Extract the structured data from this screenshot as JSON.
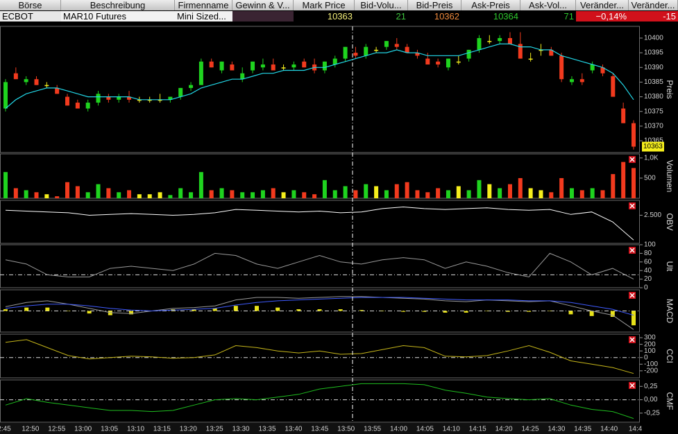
{
  "table": {
    "columns": [
      "Börse",
      "Beschreibung",
      "Firmenname",
      "Gewinn & V...",
      "Mark Price",
      "Bid-Volu...",
      "Bid-Preis",
      "Ask-Preis",
      "Ask-Vol...",
      "Veränder...",
      "Veränder..."
    ],
    "rows": [
      [
        "ECBOT",
        "MAR10 Futures",
        "Mini Sized...",
        "",
        "10363",
        "21",
        "10362",
        "10364",
        "71",
        "−0,14%",
        "-15"
      ]
    ]
  },
  "x_axis": {
    "labels": [
      "2:45",
      "12:50",
      "12:55",
      "13:00",
      "13:05",
      "13:10",
      "13:15",
      "13:20",
      "13:25",
      "13:30",
      "13:35",
      "13:40",
      "13:45",
      "13:50",
      "13:55",
      "14:00",
      "14:05",
      "14:10",
      "14:15",
      "14:20",
      "14:25",
      "14:30",
      "14:35",
      "14:40",
      "14:4"
    ]
  },
  "chart_data": [
    {
      "type": "candlestick",
      "label": "Preis",
      "ylim": [
        10361,
        10404
      ],
      "yticks": [
        10365,
        10370,
        10375,
        10380,
        10385,
        10390,
        10395,
        10400
      ],
      "colors": {
        "up": "#1fd31f",
        "down": "#f23a1e",
        "flat": "#f5ee1c"
      },
      "open": [
        10376,
        10388,
        10385,
        10386,
        10384,
        10383,
        10380,
        10378,
        10376,
        10378,
        10380,
        10379,
        10380,
        10379,
        10379,
        10379,
        10379,
        10380,
        10383,
        10384,
        10392,
        10389,
        10391,
        10386,
        10389,
        10390,
        10391,
        10390,
        10390,
        10392,
        10391,
        10389,
        10391,
        10393,
        10395,
        10394,
        10396,
        10397,
        10398,
        10397,
        10395,
        10393,
        10392,
        10390,
        10392,
        10393,
        10396,
        10399,
        10399,
        10400,
        10398,
        10393,
        10396,
        10396,
        10394,
        10385,
        10386,
        10389,
        10390,
        10387,
        10376,
        10371
      ],
      "high": [
        10386,
        10390,
        10387,
        10387,
        10385,
        10384,
        10381,
        10379,
        10379,
        10382,
        10381,
        10381,
        10382,
        10380,
        10380,
        10381,
        10380,
        10383,
        10385,
        10393,
        10393,
        10392,
        10392,
        10390,
        10392,
        10393,
        10393,
        10391,
        10392,
        10393,
        10393,
        10392,
        10394,
        10397,
        10397,
        10398,
        10397,
        10399,
        10400,
        10398,
        10396,
        10395,
        10393,
        10393,
        10394,
        10396,
        10401,
        10401,
        10401,
        10402,
        10402,
        10395,
        10398,
        10397,
        10395,
        10387,
        10388,
        10392,
        10391,
        10388,
        10378,
        10372
      ],
      "low": [
        10375,
        10386,
        10384,
        10384,
        10383,
        10381,
        10377,
        10376,
        10375,
        10377,
        10378,
        10378,
        10378,
        10378,
        10378,
        10378,
        10378,
        10379,
        10382,
        10384,
        10390,
        10388,
        10389,
        10385,
        10388,
        10389,
        10389,
        10389,
        10389,
        10390,
        10388,
        10388,
        10390,
        10392,
        10393,
        10393,
        10395,
        10396,
        10396,
        10395,
        10393,
        10391,
        10390,
        10389,
        10391,
        10392,
        10395,
        10398,
        10398,
        10398,
        10393,
        10392,
        10394,
        10394,
        10385,
        10384,
        10384,
        10388,
        10387,
        10380,
        10371,
        10362
      ],
      "close": [
        10385,
        10386,
        10386,
        10384,
        10384,
        10381,
        10377,
        10376,
        10378,
        10381,
        10379,
        10380,
        10379,
        10379,
        10379,
        10379,
        10380,
        10383,
        10384,
        10392,
        10390,
        10392,
        10389,
        10388,
        10392,
        10391,
        10389,
        10390,
        10391,
        10390,
        10389,
        10392,
        10393,
        10397,
        10394,
        10397,
        10396,
        10399,
        10397,
        10395,
        10394,
        10391,
        10391,
        10393,
        10392,
        10396,
        10400,
        10399,
        10400,
        10398,
        10393,
        10393,
        10396,
        10394,
        10386,
        10386,
        10385,
        10391,
        10388,
        10380,
        10371,
        10363
      ],
      "ma": {
        "color": "#22d8e8",
        "values": [
          10376,
          10379,
          10381,
          10382,
          10383,
          10383,
          10382,
          10381,
          10380,
          10380,
          10380,
          10380,
          10380,
          10379,
          10379,
          10379,
          10379,
          10380,
          10381,
          10383,
          10384,
          10385,
          10386,
          10386,
          10387,
          10388,
          10388,
          10389,
          10389,
          10389,
          10390,
          10390,
          10391,
          10392,
          10393,
          10394,
          10395,
          10395,
          10396,
          10395,
          10395,
          10394,
          10394,
          10394,
          10394,
          10395,
          10396,
          10397,
          10398,
          10398,
          10397,
          10397,
          10396,
          10396,
          10394,
          10393,
          10392,
          10391,
          10390,
          10388,
          10384,
          10379
        ]
      },
      "last": 10363
    },
    {
      "type": "bar",
      "label": "Volumen",
      "ylim": [
        0,
        1100
      ],
      "yticks": [
        500,
        {
          "value": 1000,
          "label": "1,0K"
        }
      ],
      "values": [
        650,
        250,
        200,
        150,
        100,
        50,
        400,
        300,
        150,
        350,
        250,
        150,
        200,
        100,
        100,
        150,
        80,
        250,
        150,
        650,
        200,
        250,
        200,
        150,
        150,
        200,
        250,
        150,
        200,
        150,
        100,
        450,
        200,
        300,
        200,
        350,
        300,
        200,
        350,
        400,
        200,
        150,
        250,
        200,
        300,
        200,
        450,
        350,
        250,
        350,
        500,
        250,
        200,
        150,
        500,
        250,
        200,
        250,
        200,
        600,
        900,
        750
      ]
    },
    {
      "type": "line",
      "label": "OBV",
      "ylim": [
        800,
        3400
      ],
      "yticks": [
        {
          "value": 2500,
          "label": "2.500"
        }
      ],
      "series": [
        {
          "color": "#ffffff",
          "values": [
            2800,
            2750,
            2700,
            2650,
            2500,
            2550,
            2600,
            2550,
            2500,
            2550,
            2650,
            2850,
            2800,
            2750,
            2700,
            2750,
            2650,
            2700,
            2900,
            3000,
            2900,
            2850,
            2900,
            2950,
            2850,
            2800,
            2850,
            2550,
            2700,
            2100,
            1000
          ]
        }
      ]
    },
    {
      "type": "line",
      "label": "Ult",
      "ylim": [
        0,
        100
      ],
      "yticks": [
        0,
        20,
        40,
        60,
        80,
        100
      ],
      "ref_lines": [
        30
      ],
      "series": [
        {
          "color": "#9a9a9a",
          "values": [
            65,
            55,
            30,
            25,
            25,
            45,
            50,
            45,
            40,
            55,
            80,
            75,
            55,
            45,
            60,
            75,
            60,
            55,
            65,
            70,
            65,
            45,
            60,
            50,
            35,
            25,
            80,
            60,
            30,
            45,
            20
          ]
        }
      ]
    },
    {
      "type": "line",
      "label": "MACD",
      "ylim": [
        -2.5,
        2.5
      ],
      "yticks": [],
      "ref_lines": [
        0
      ],
      "series": [
        {
          "color": "#e8e21a",
          "kind": "bar",
          "values": [
            0.2,
            0.4,
            0.4,
            0,
            -0.3,
            -0.5,
            -0.4,
            0,
            0.2,
            0.2,
            0.3,
            0.6,
            0.6,
            0.4,
            0.2,
            0.2,
            0.2,
            0.1,
            0,
            -0.1,
            -0.1,
            -0.2,
            -0.2,
            0,
            -0.1,
            -0.1,
            0,
            -0.4,
            -0.6,
            -0.7,
            -1.7
          ]
        },
        {
          "color": "#9a9a9a",
          "values": [
            0.5,
            1.0,
            1.2,
            0.8,
            0.3,
            -0.2,
            -0.3,
            0,
            0.3,
            0.4,
            0.6,
            1.3,
            1.6,
            1.6,
            1.5,
            1.6,
            1.7,
            1.7,
            1.6,
            1.5,
            1.4,
            1.2,
            1.1,
            1.3,
            1.2,
            1.1,
            1.2,
            0.6,
            0.0,
            -0.5,
            -2.2
          ]
        },
        {
          "color": "#3f5bff",
          "values": [
            0.3,
            0.6,
            0.8,
            0.8,
            0.6,
            0.3,
            0.1,
            0.0,
            0.1,
            0.2,
            0.3,
            0.7,
            1.0,
            1.2,
            1.3,
            1.4,
            1.5,
            1.6,
            1.6,
            1.6,
            1.5,
            1.4,
            1.3,
            1.3,
            1.3,
            1.2,
            1.2,
            1.0,
            0.6,
            0.2,
            -0.5
          ]
        }
      ]
    },
    {
      "type": "line",
      "label": "CCI",
      "ylim": [
        -306,
        353
      ],
      "yticks": [
        -200,
        -100,
        0,
        100,
        200,
        300
      ],
      "ref_lines": [
        0
      ],
      "series": [
        {
          "color": "#c8b81a",
          "values": [
            230,
            270,
            150,
            30,
            -20,
            0,
            20,
            10,
            -10,
            0,
            40,
            180,
            150,
            100,
            70,
            100,
            50,
            60,
            120,
            180,
            150,
            20,
            10,
            30,
            100,
            180,
            80,
            -50,
            -100,
            -150,
            -240
          ]
        }
      ]
    },
    {
      "type": "line",
      "label": "CMF",
      "ylim": [
        -0.42,
        0.37
      ],
      "yticks": [
        {
          "value": -0.25,
          "label": "-0,25"
        },
        {
          "value": 0,
          "label": "0,00"
        },
        {
          "value": 0.25,
          "label": "0,25"
        }
      ],
      "ref_lines": [
        0
      ],
      "series": [
        {
          "color": "#1fbf1f",
          "values": [
            -0.1,
            0.02,
            -0.05,
            -0.1,
            -0.15,
            -0.2,
            -0.2,
            -0.22,
            -0.2,
            -0.1,
            0.0,
            0.02,
            0.0,
            0.05,
            0.1,
            0.2,
            0.25,
            0.3,
            0.3,
            0.3,
            0.28,
            0.18,
            0.12,
            0.05,
            0.02,
            0.0,
            0.02,
            -0.1,
            -0.18,
            -0.22,
            -0.35
          ]
        }
      ]
    }
  ]
}
